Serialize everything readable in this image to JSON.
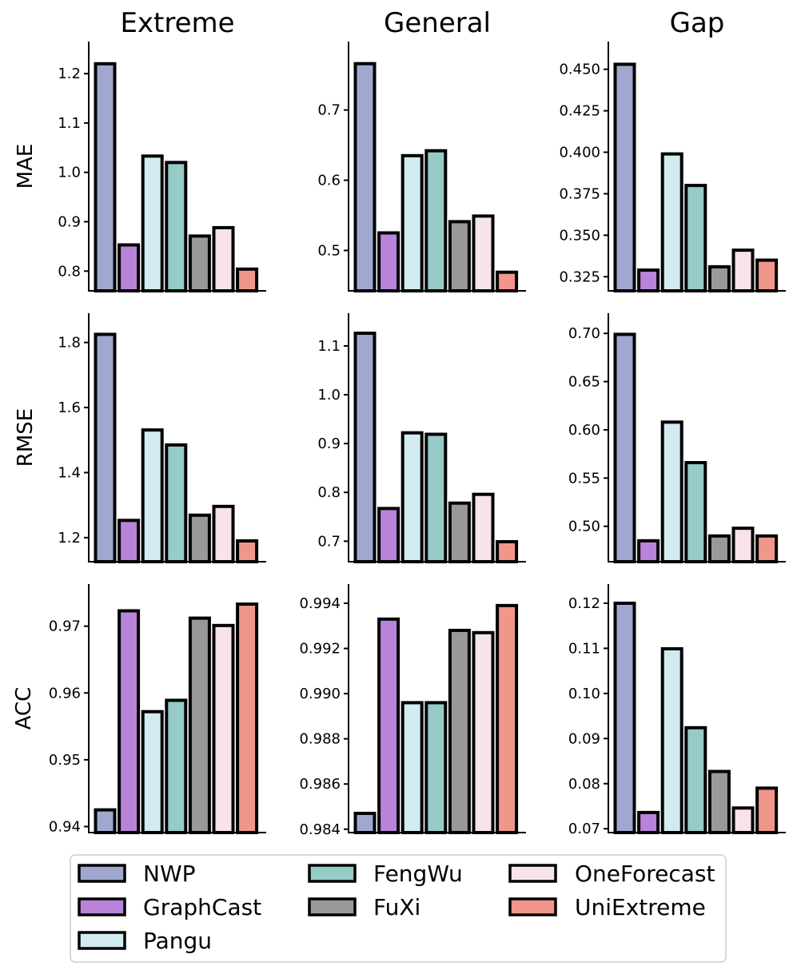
{
  "chart_data": {
    "type": "bar",
    "categories": [
      "NWP",
      "GraphCast",
      "Pangu",
      "FengWu",
      "FuXi",
      "OneForecast",
      "UniExtreme"
    ],
    "colors": [
      "#a0a8d0",
      "#b883d8",
      "#d1ebf0",
      "#96cbc8",
      "#999999",
      "#f8e2ec",
      "#f0968a"
    ],
    "legend": {
      "placement": "bottom-center",
      "items": [
        "NWP",
        "GraphCast",
        "Pangu",
        "FengWu",
        "FuXi",
        "OneForecast",
        "UniExtreme"
      ]
    },
    "columns": [
      "Extreme",
      "General",
      "Gap"
    ],
    "rows": [
      "MAE",
      "RMSE",
      "ACC"
    ],
    "grid": false,
    "panels": [
      {
        "row": "MAE",
        "column": "Extreme",
        "values": [
          1.22,
          0.853,
          1.033,
          1.02,
          0.871,
          0.888,
          0.804
        ],
        "ylim": [
          0.76,
          1.265
        ],
        "ticks": [
          0.8,
          0.9,
          1.0,
          1.1,
          1.2
        ],
        "tick_labels": [
          "0.8",
          "0.9",
          "1.0",
          "1.1",
          "1.2"
        ]
      },
      {
        "row": "MAE",
        "column": "General",
        "values": [
          0.766,
          0.525,
          0.635,
          0.642,
          0.541,
          0.549,
          0.469
        ],
        "ylim": [
          0.4425,
          0.7975
        ],
        "ticks": [
          0.5,
          0.6,
          0.7
        ],
        "tick_labels": [
          "0.5",
          "0.6",
          "0.7"
        ]
      },
      {
        "row": "MAE",
        "column": "Gap",
        "values": [
          0.453,
          0.329,
          0.399,
          0.38,
          0.331,
          0.341,
          0.335
        ],
        "ylim": [
          0.3165,
          0.4667
        ],
        "ticks": [
          0.325,
          0.35,
          0.375,
          0.4,
          0.425,
          0.45
        ],
        "tick_labels": [
          "0.325",
          "0.350",
          "0.375",
          "0.400",
          "0.425",
          "0.450"
        ]
      },
      {
        "row": "RMSE",
        "column": "Extreme",
        "values": [
          1.825,
          1.253,
          1.531,
          1.485,
          1.269,
          1.296,
          1.19
        ],
        "ylim": [
          1.126,
          1.89
        ],
        "ticks": [
          1.2,
          1.4,
          1.6,
          1.8
        ],
        "tick_labels": [
          "1.2",
          "1.4",
          "1.6",
          "1.8"
        ]
      },
      {
        "row": "RMSE",
        "column": "General",
        "values": [
          1.126,
          0.767,
          0.922,
          0.919,
          0.778,
          0.796,
          0.699
        ],
        "ylim": [
          0.658,
          1.167
        ],
        "ticks": [
          0.7,
          0.8,
          0.9,
          1.0,
          1.1
        ],
        "tick_labels": [
          "0.7",
          "0.8",
          "0.9",
          "1.0",
          "1.1"
        ]
      },
      {
        "row": "RMSE",
        "column": "Gap",
        "values": [
          0.699,
          0.485,
          0.608,
          0.566,
          0.49,
          0.498,
          0.49
        ],
        "ylim": [
          0.4633,
          0.7209
        ],
        "ticks": [
          0.5,
          0.55,
          0.6,
          0.65,
          0.7
        ],
        "tick_labels": [
          "0.50",
          "0.55",
          "0.60",
          "0.65",
          "0.70"
        ]
      },
      {
        "row": "ACC",
        "column": "Extreme",
        "values": [
          0.9425,
          0.9723,
          0.9572,
          0.9589,
          0.9712,
          0.9701,
          0.9733
        ],
        "ylim": [
          0.9391,
          0.9763
        ],
        "ticks": [
          0.94,
          0.95,
          0.96,
          0.97
        ],
        "tick_labels": [
          "0.94",
          "0.95",
          "0.96",
          "0.97"
        ]
      },
      {
        "row": "ACC",
        "column": "General",
        "values": [
          0.9847,
          0.9933,
          0.9896,
          0.9896,
          0.9928,
          0.9927,
          0.9939
        ],
        "ylim": [
          0.98385,
          0.99485
        ],
        "ticks": [
          0.984,
          0.986,
          0.988,
          0.99,
          0.992,
          0.994
        ],
        "tick_labels": [
          "0.984",
          "0.986",
          "0.988",
          "0.990",
          "0.992",
          "0.994"
        ]
      },
      {
        "row": "ACC",
        "column": "Gap",
        "values": [
          0.12,
          0.0736,
          0.1099,
          0.0924,
          0.0827,
          0.0746,
          0.079
        ],
        "ylim": [
          0.06915,
          0.12425
        ],
        "ticks": [
          0.07,
          0.08,
          0.09,
          0.1,
          0.11,
          0.12
        ],
        "tick_labels": [
          "0.07",
          "0.08",
          "0.09",
          "0.10",
          "0.11",
          "0.12"
        ]
      }
    ]
  }
}
